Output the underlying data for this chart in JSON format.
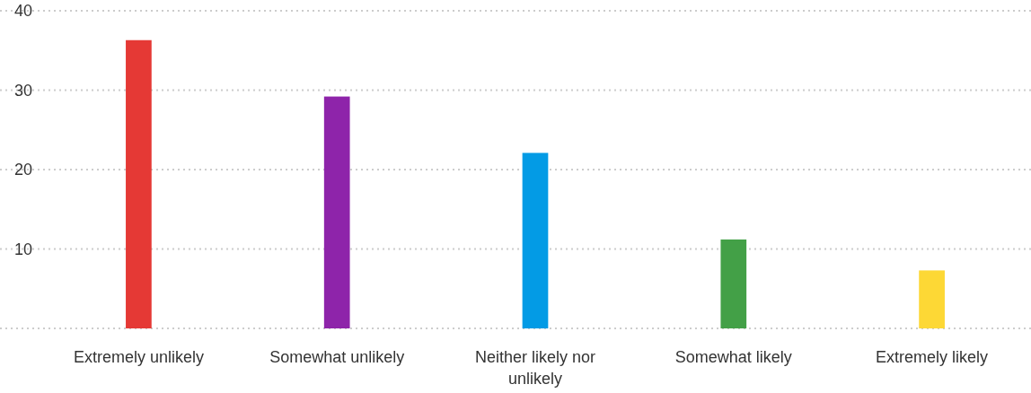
{
  "chart_data": {
    "type": "bar",
    "categories": [
      "Extremely unlikely",
      "Somewhat unlikely",
      "Neither likely nor unlikely",
      "Somewhat likely",
      "Extremely likely"
    ],
    "values": [
      36.3,
      29.2,
      22.1,
      11.2,
      7.3
    ],
    "colors": [
      "#e53935",
      "#8e24aa",
      "#039be5",
      "#43a047",
      "#fdd835"
    ],
    "ylim": [
      0,
      40
    ],
    "yticks": [
      {
        "value": 0,
        "label": null
      },
      10,
      20,
      30,
      40
    ],
    "grid": "y"
  }
}
